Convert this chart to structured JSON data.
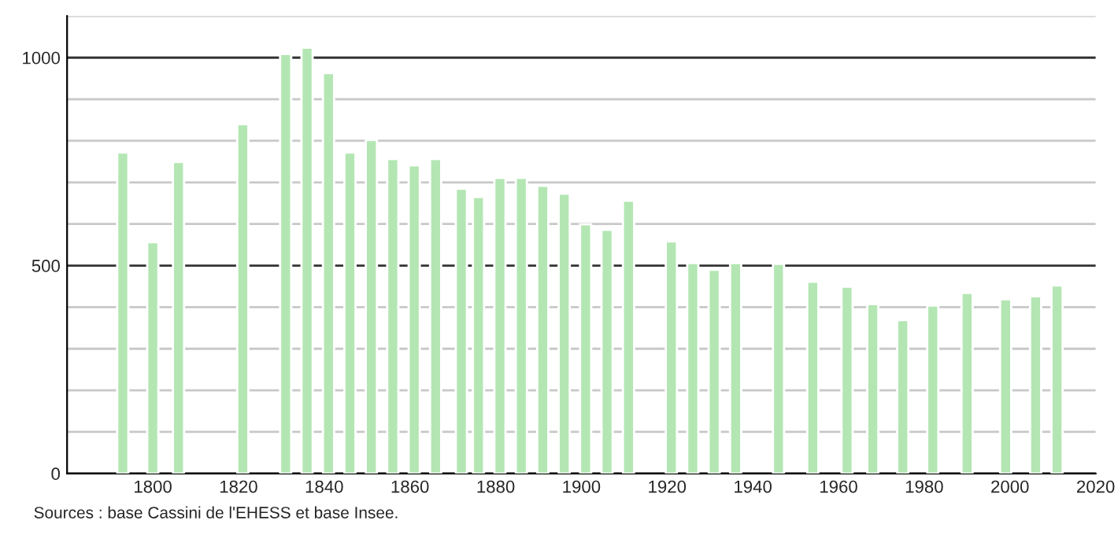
{
  "chart_data": {
    "type": "bar",
    "x": [
      1793,
      1800,
      1806,
      1821,
      1831,
      1836,
      1841,
      1846,
      1851,
      1856,
      1861,
      1866,
      1872,
      1876,
      1881,
      1886,
      1891,
      1896,
      1901,
      1906,
      1911,
      1921,
      1926,
      1931,
      1936,
      1946,
      1954,
      1962,
      1968,
      1975,
      1982,
      1990,
      1999,
      2006,
      2011
    ],
    "values": [
      772,
      556,
      749,
      840,
      1009,
      1024,
      963,
      772,
      802,
      756,
      741,
      756,
      685,
      665,
      711,
      711,
      692,
      673,
      599,
      586,
      656,
      558,
      506,
      490,
      506,
      504,
      461,
      449,
      407,
      369,
      404,
      434,
      419,
      426,
      452
    ],
    "color": "#b3e6b3",
    "xlim": [
      1780,
      2020
    ],
    "xticks": [
      1800,
      1820,
      1840,
      1860,
      1880,
      1900,
      1920,
      1940,
      1960,
      1980,
      2000,
      2020
    ],
    "ylim": [
      0,
      1100
    ],
    "yticks": [
      0,
      {
        "value": 100,
        "label": null
      },
      {
        "value": 200,
        "label": null
      },
      {
        "value": 300,
        "label": null
      },
      {
        "value": 400,
        "label": null
      },
      500,
      {
        "value": 600,
        "label": null
      },
      {
        "value": 700,
        "label": null
      },
      {
        "value": 800,
        "label": null
      },
      {
        "value": 900,
        "label": null
      },
      1000,
      {
        "value": 1100,
        "label": null
      }
    ],
    "grid": "y",
    "annotations": [
      "Sources : base Cassini de l'EHESS et base Insee."
    ]
  }
}
